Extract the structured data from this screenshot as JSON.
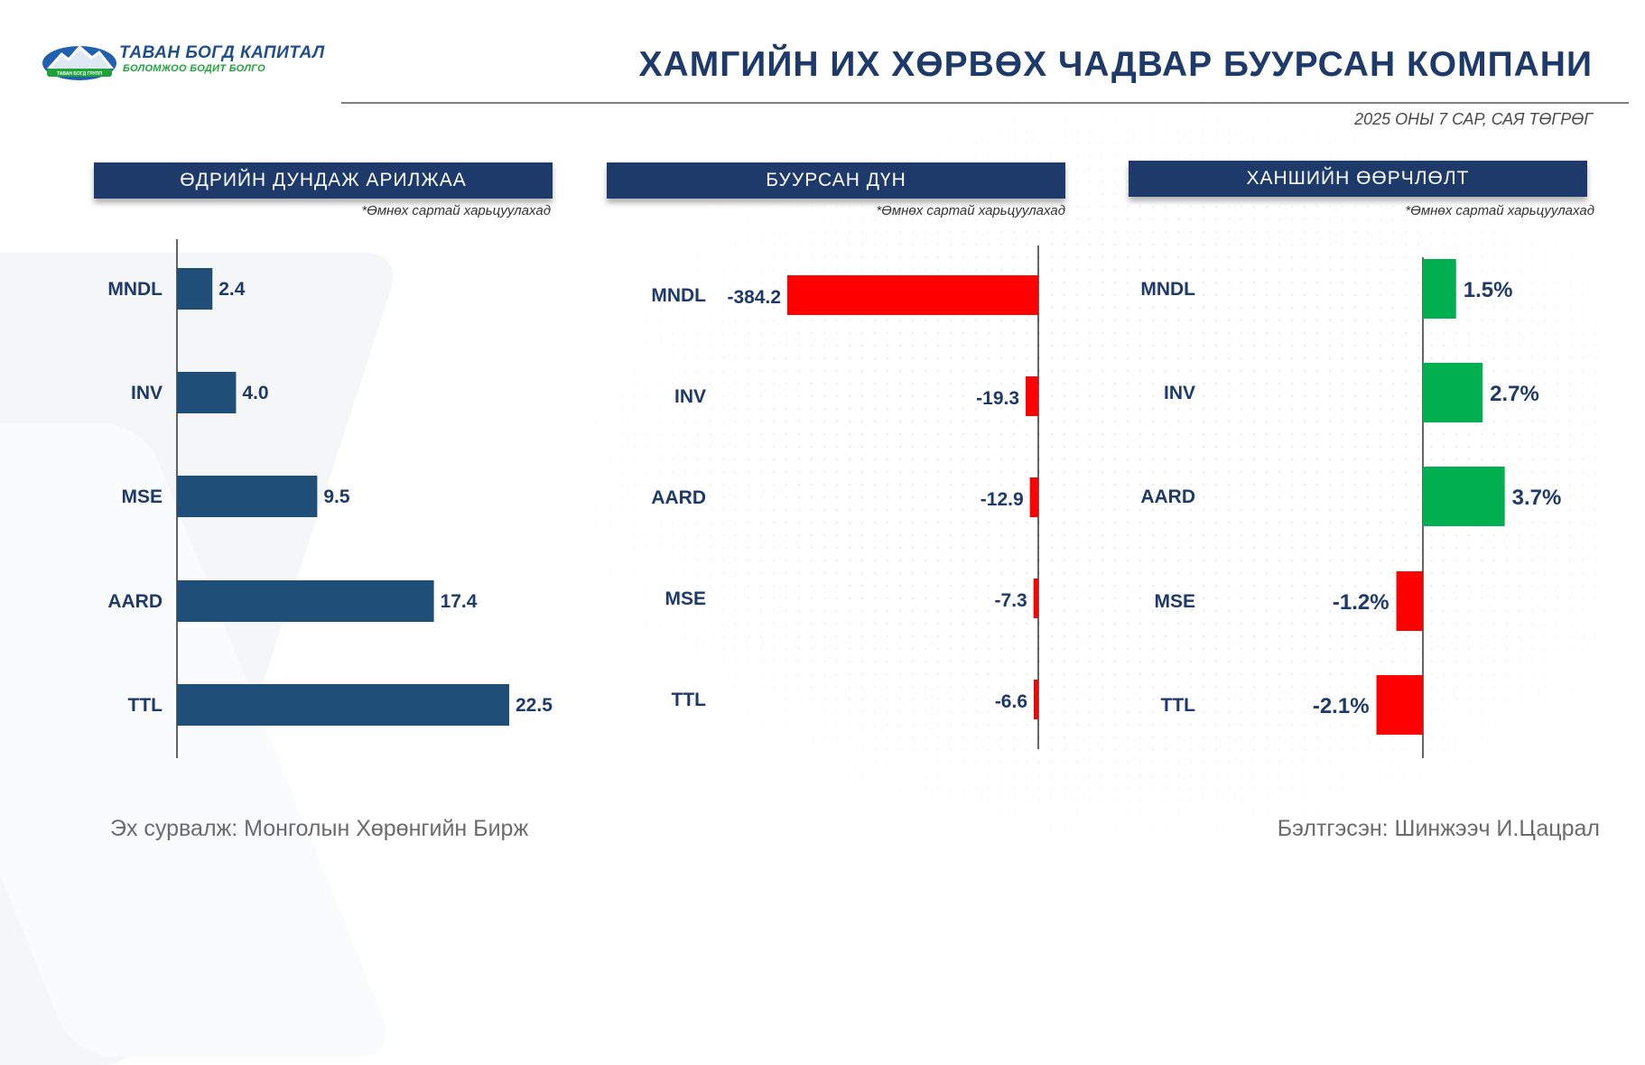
{
  "header": {
    "title": "ХАМГИЙН ИХ ХӨРВӨХ ЧАДВАР БУУРСАН КОМПАНИ",
    "subtitle": "2025 ОНЫ 7 САР, САЯ ТӨГРӨГ"
  },
  "logo": {
    "main_text": "ТАВАН БОГД КАПИТАЛ",
    "sub_text": "БОЛОМЖОО БОДИТ БОЛГО",
    "badge_text": "ТАВАН БОГД ГРУПП"
  },
  "colors": {
    "navy": "#1e3a6b",
    "bar_blue": "#1f4e79",
    "bar_red": "#ff0000",
    "bar_green": "#00b050",
    "label": "#1e3a6b"
  },
  "panels": [
    {
      "heading": "ӨДРИЙН ДУНДАЖ АРИЛЖАА",
      "note": "*Өмнөх сартай харьцуулахад"
    },
    {
      "heading": "БУУРСАН ДҮН",
      "note": "*Өмнөх сартай харьцуулахад"
    },
    {
      "heading": "ХАНШИЙН ӨӨРЧЛӨЛТ",
      "note": "*Өмнөх сартай харьцуулахад"
    }
  ],
  "chart_data": [
    {
      "type": "bar",
      "orientation": "horizontal",
      "title": "ӨДРИЙН ДУНДАЖ АРИЛЖАА",
      "categories": [
        "MNDL",
        "INV",
        "MSE",
        "AARD",
        "TTL"
      ],
      "values": [
        2.4,
        4.0,
        9.5,
        17.4,
        22.5
      ],
      "labels": [
        "2.4",
        "4.0",
        "9.5",
        "17.4",
        "22.5"
      ],
      "xlim": [
        0,
        22.5
      ],
      "color": "#1f4e79"
    },
    {
      "type": "bar",
      "orientation": "horizontal",
      "title": "БУУРСАН ДҮН",
      "categories": [
        "MNDL",
        "INV",
        "AARD",
        "MSE",
        "TTL"
      ],
      "values": [
        -384.2,
        -19.3,
        -12.9,
        -7.3,
        -6.6
      ],
      "labels": [
        "-384.2",
        "-19.3",
        "-12.9",
        "-7.3",
        "-6.6"
      ],
      "xlim": [
        -384.2,
        0
      ],
      "color": "#ff0000"
    },
    {
      "type": "bar",
      "orientation": "horizontal",
      "title": "ХАНШИЙН ӨӨРЧЛӨЛТ",
      "categories": [
        "MNDL",
        "INV",
        "AARD",
        "MSE",
        "TTL"
      ],
      "values": [
        1.5,
        2.7,
        3.7,
        -1.2,
        -2.1
      ],
      "labels": [
        "1.5%",
        "2.7%",
        "3.7%",
        "-1.2%",
        "-2.1%"
      ],
      "positive_color": "#00b050",
      "negative_color": "#ff0000"
    }
  ],
  "footer": {
    "source": "Эх сурвалж: Монголын Хөрөнгийн Бирж",
    "author": "Бэлтгэсэн: Шинжээч И.Цацрал"
  }
}
